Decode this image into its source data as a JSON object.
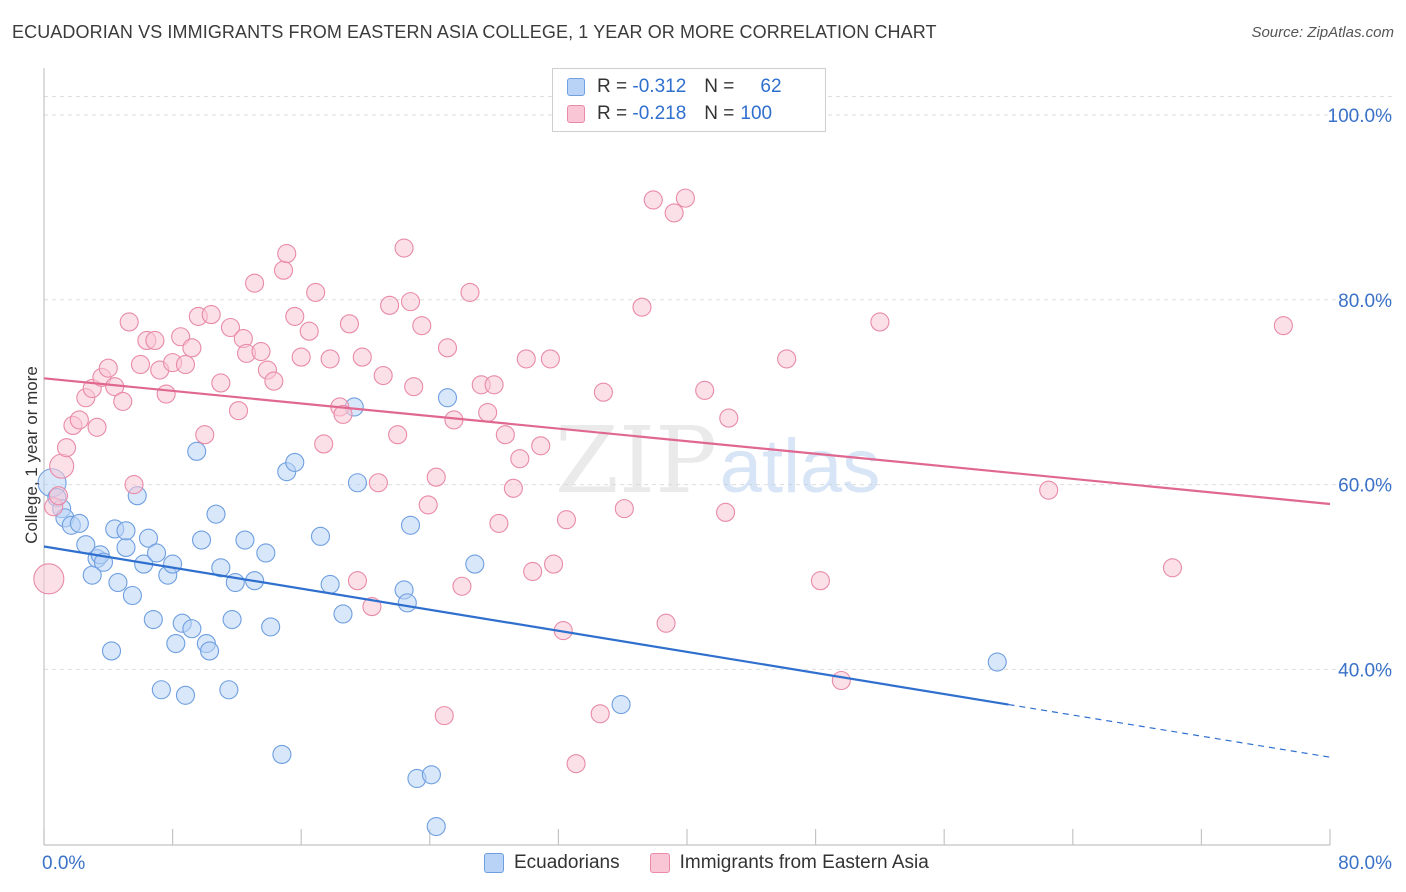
{
  "header": {
    "title": "ECUADORIAN VS IMMIGRANTS FROM EASTERN ASIA COLLEGE, 1 YEAR OR MORE CORRELATION CHART",
    "source": "Source: ZipAtlas.com"
  },
  "legend": {
    "rows": [
      {
        "r_label": "R =",
        "r_value": "-0.312",
        "n_label": "N =",
        "n_value": "62"
      },
      {
        "r_label": "R =",
        "r_value": "-0.218",
        "n_label": "N =",
        "n_value": "100"
      }
    ]
  },
  "watermark": {
    "part1": "ZIP",
    "part2": "atlas"
  },
  "colors": {
    "blue_fill": "#b8d3f5",
    "blue_stroke": "#6f9fe0",
    "blue_line": "#2f6fce",
    "pink_fill": "#f9c6d6",
    "pink_stroke": "#e88aa8",
    "pink_line": "#e06890",
    "tick_label": "#3a72c8",
    "grid": "#dddddd"
  },
  "chart_data": {
    "type": "scatter",
    "title": "ECUADORIAN VS IMMIGRANTS FROM EASTERN ASIA COLLEGE, 1 YEAR OR MORE CORRELATION CHART",
    "xlabel": "",
    "ylabel": "College, 1 year or more",
    "xlim": [
      0,
      80
    ],
    "ylim": [
      21,
      104
    ],
    "x_tick_labels": [
      "0.0%",
      "80.0%"
    ],
    "y_tick_labels": [
      "40.0%",
      "60.0%",
      "80.0%",
      "100.0%"
    ],
    "y_ticks": [
      40,
      60,
      80,
      100
    ],
    "grid": true,
    "legend_position": "top-center",
    "series": [
      {
        "name": "Ecuadorians",
        "color": "blue",
        "trend": {
          "x_start": 0,
          "y_start": 53.3,
          "x_end": 60,
          "y_end": 36.2,
          "dashed_to_x": 80,
          "dashed_to_y": 30.5
        },
        "points": [
          [
            0.5,
            60.2,
            14
          ],
          [
            0.8,
            58.6,
            9
          ],
          [
            1.1,
            57.4,
            9
          ],
          [
            1.3,
            56.4,
            9
          ],
          [
            1.7,
            55.6,
            9
          ],
          [
            2.2,
            55.8,
            9
          ],
          [
            2.6,
            53.5,
            9
          ],
          [
            3.0,
            50.2,
            9
          ],
          [
            3.3,
            52.0,
            9
          ],
          [
            3.5,
            52.4,
            9
          ],
          [
            3.7,
            51.6,
            9
          ],
          [
            4.2,
            42.0,
            9
          ],
          [
            4.4,
            55.2,
            9
          ],
          [
            4.6,
            49.4,
            9
          ],
          [
            5.1,
            53.2,
            9
          ],
          [
            5.1,
            55.0,
            9
          ],
          [
            5.5,
            48.0,
            9
          ],
          [
            5.8,
            58.8,
            9
          ],
          [
            6.2,
            51.4,
            9
          ],
          [
            6.5,
            54.2,
            9
          ],
          [
            6.8,
            45.4,
            9
          ],
          [
            7.0,
            52.6,
            9
          ],
          [
            7.3,
            37.8,
            9
          ],
          [
            7.7,
            50.2,
            9
          ],
          [
            8.0,
            51.4,
            9
          ],
          [
            8.2,
            42.8,
            9
          ],
          [
            8.6,
            45.0,
            9
          ],
          [
            8.8,
            37.2,
            9
          ],
          [
            9.2,
            44.4,
            9
          ],
          [
            9.5,
            63.6,
            9
          ],
          [
            9.8,
            54.0,
            9
          ],
          [
            10.1,
            42.8,
            9
          ],
          [
            10.3,
            42.0,
            9
          ],
          [
            10.7,
            56.8,
            9
          ],
          [
            11.0,
            51.0,
            9
          ],
          [
            11.5,
            37.8,
            9
          ],
          [
            11.7,
            45.4,
            9
          ],
          [
            11.9,
            49.4,
            9
          ],
          [
            12.5,
            54.0,
            9
          ],
          [
            13.1,
            49.6,
            9
          ],
          [
            13.8,
            52.6,
            9
          ],
          [
            14.1,
            44.6,
            9
          ],
          [
            14.8,
            30.8,
            9
          ],
          [
            15.1,
            61.4,
            9
          ],
          [
            15.6,
            62.4,
            9
          ],
          [
            17.2,
            54.4,
            9
          ],
          [
            17.8,
            49.2,
            9
          ],
          [
            18.6,
            46.0,
            9
          ],
          [
            19.3,
            68.4,
            9
          ],
          [
            19.5,
            60.2,
            9
          ],
          [
            22.4,
            48.6,
            9
          ],
          [
            22.6,
            47.2,
            9
          ],
          [
            22.8,
            55.6,
            9
          ],
          [
            23.2,
            28.2,
            9
          ],
          [
            24.1,
            28.6,
            9
          ],
          [
            24.4,
            23.0,
            9
          ],
          [
            25.1,
            69.4,
            9
          ],
          [
            26.8,
            51.4,
            9
          ],
          [
            35.9,
            36.2,
            9
          ],
          [
            59.3,
            40.8,
            9
          ]
        ]
      },
      {
        "name": "Immigrants from Eastern Asia",
        "color": "pink",
        "trend": {
          "x_start": 0,
          "y_start": 71.5,
          "x_end": 80,
          "y_end": 57.9
        },
        "points": [
          [
            0.3,
            49.8,
            15
          ],
          [
            0.6,
            57.6,
            9
          ],
          [
            0.9,
            58.8,
            9
          ],
          [
            1.1,
            62.0,
            12
          ],
          [
            1.4,
            64.0,
            9
          ],
          [
            1.8,
            66.4,
            9
          ],
          [
            2.2,
            67.0,
            9
          ],
          [
            2.6,
            69.4,
            9
          ],
          [
            3.0,
            70.4,
            9
          ],
          [
            3.3,
            66.2,
            9
          ],
          [
            3.6,
            71.6,
            9
          ],
          [
            4.0,
            72.6,
            9
          ],
          [
            4.4,
            70.6,
            9
          ],
          [
            4.9,
            69.0,
            9
          ],
          [
            5.3,
            77.6,
            9
          ],
          [
            5.6,
            60.0,
            9
          ],
          [
            6.0,
            73.0,
            9
          ],
          [
            6.4,
            75.6,
            9
          ],
          [
            6.9,
            75.6,
            9
          ],
          [
            7.2,
            72.4,
            9
          ],
          [
            7.6,
            69.8,
            9
          ],
          [
            8.0,
            73.2,
            9
          ],
          [
            8.5,
            76.0,
            9
          ],
          [
            8.8,
            73.0,
            9
          ],
          [
            9.2,
            74.8,
            9
          ],
          [
            9.6,
            78.2,
            9
          ],
          [
            10.0,
            65.4,
            9
          ],
          [
            10.4,
            78.4,
            9
          ],
          [
            11.0,
            71.0,
            9
          ],
          [
            11.6,
            77.0,
            9
          ],
          [
            12.1,
            68.0,
            9
          ],
          [
            12.4,
            75.8,
            9
          ],
          [
            12.6,
            74.2,
            9
          ],
          [
            13.1,
            81.8,
            9
          ],
          [
            13.5,
            74.4,
            9
          ],
          [
            13.9,
            72.4,
            9
          ],
          [
            14.3,
            71.2,
            9
          ],
          [
            14.9,
            83.2,
            9
          ],
          [
            15.1,
            85.0,
            9
          ],
          [
            15.6,
            78.2,
            9
          ],
          [
            16.0,
            73.8,
            9
          ],
          [
            16.5,
            76.6,
            9
          ],
          [
            16.9,
            80.8,
            9
          ],
          [
            17.4,
            64.4,
            9
          ],
          [
            17.8,
            73.6,
            9
          ],
          [
            18.4,
            68.4,
            9
          ],
          [
            18.6,
            67.6,
            9
          ],
          [
            19.0,
            77.4,
            9
          ],
          [
            19.5,
            49.6,
            9
          ],
          [
            19.8,
            73.8,
            9
          ],
          [
            20.4,
            46.8,
            9
          ],
          [
            20.8,
            60.2,
            9
          ],
          [
            21.1,
            71.8,
            9
          ],
          [
            21.5,
            79.4,
            9
          ],
          [
            22.0,
            65.4,
            9
          ],
          [
            22.4,
            85.6,
            9
          ],
          [
            22.8,
            79.8,
            9
          ],
          [
            23.0,
            70.6,
            9
          ],
          [
            23.5,
            77.2,
            9
          ],
          [
            23.9,
            57.8,
            9
          ],
          [
            24.4,
            60.8,
            9
          ],
          [
            24.9,
            35.0,
            9
          ],
          [
            25.1,
            74.8,
            9
          ],
          [
            25.5,
            67.0,
            9
          ],
          [
            26.0,
            49.0,
            9
          ],
          [
            26.5,
            80.8,
            9
          ],
          [
            27.2,
            70.8,
            9
          ],
          [
            27.6,
            67.8,
            9
          ],
          [
            28.0,
            70.8,
            9
          ],
          [
            28.3,
            55.8,
            9
          ],
          [
            28.7,
            65.4,
            9
          ],
          [
            29.2,
            59.6,
            9
          ],
          [
            29.6,
            62.8,
            9
          ],
          [
            30.0,
            73.6,
            9
          ],
          [
            30.4,
            50.6,
            9
          ],
          [
            30.9,
            64.2,
            9
          ],
          [
            31.5,
            73.6,
            9
          ],
          [
            31.7,
            51.4,
            9
          ],
          [
            32.3,
            44.2,
            9
          ],
          [
            32.5,
            56.2,
            9
          ],
          [
            33.1,
            29.8,
            9
          ],
          [
            34.6,
            35.2,
            9
          ],
          [
            34.8,
            70.0,
            9
          ],
          [
            36.1,
            57.4,
            9
          ],
          [
            37.2,
            79.2,
            9
          ],
          [
            37.9,
            90.8,
            9
          ],
          [
            38.7,
            45.0,
            9
          ],
          [
            39.2,
            89.4,
            9
          ],
          [
            39.9,
            91.0,
            9
          ],
          [
            41.1,
            70.2,
            9
          ],
          [
            42.4,
            57.0,
            9
          ],
          [
            42.6,
            67.2,
            9
          ],
          [
            46.2,
            73.6,
            9
          ],
          [
            48.3,
            49.6,
            9
          ],
          [
            49.6,
            38.8,
            9
          ],
          [
            52.0,
            77.6,
            9
          ],
          [
            62.5,
            59.4,
            9
          ],
          [
            70.2,
            51.0,
            9
          ],
          [
            77.1,
            77.2,
            9
          ]
        ]
      }
    ]
  },
  "bottom_legend": {
    "items": [
      {
        "label": "Ecuadorians"
      },
      {
        "label": "Immigrants from Eastern Asia"
      }
    ]
  }
}
